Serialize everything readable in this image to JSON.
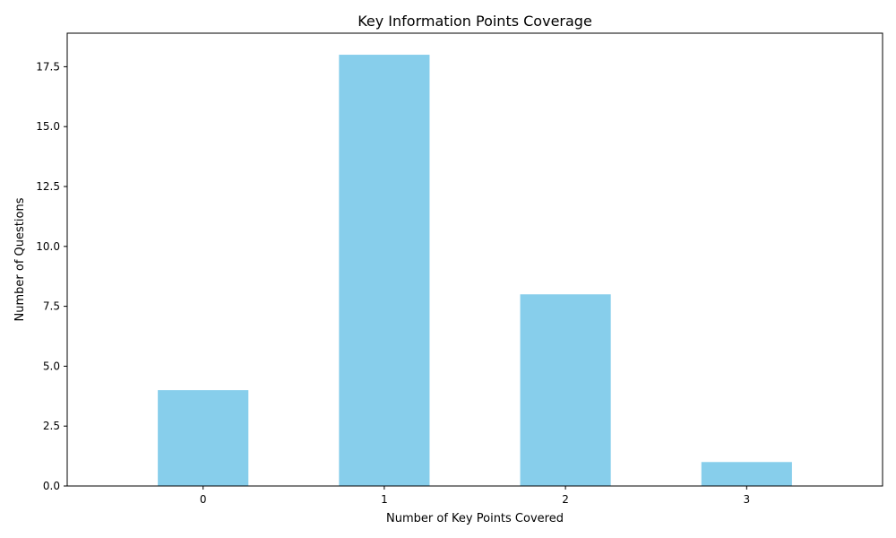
{
  "chart_data": {
    "type": "bar",
    "title": "Key Information Points Coverage",
    "xlabel": "Number of Key Points Covered",
    "ylabel": "Number of Questions",
    "categories": [
      "0",
      "1",
      "2",
      "3"
    ],
    "values": [
      4,
      18,
      8,
      1
    ],
    "ylim": [
      0,
      18.9
    ],
    "yticks": [
      "0.0",
      "2.5",
      "5.0",
      "7.5",
      "10.0",
      "12.5",
      "15.0",
      "17.5"
    ],
    "grid": false,
    "legend": "none",
    "bar_color": "#87CEEB"
  }
}
